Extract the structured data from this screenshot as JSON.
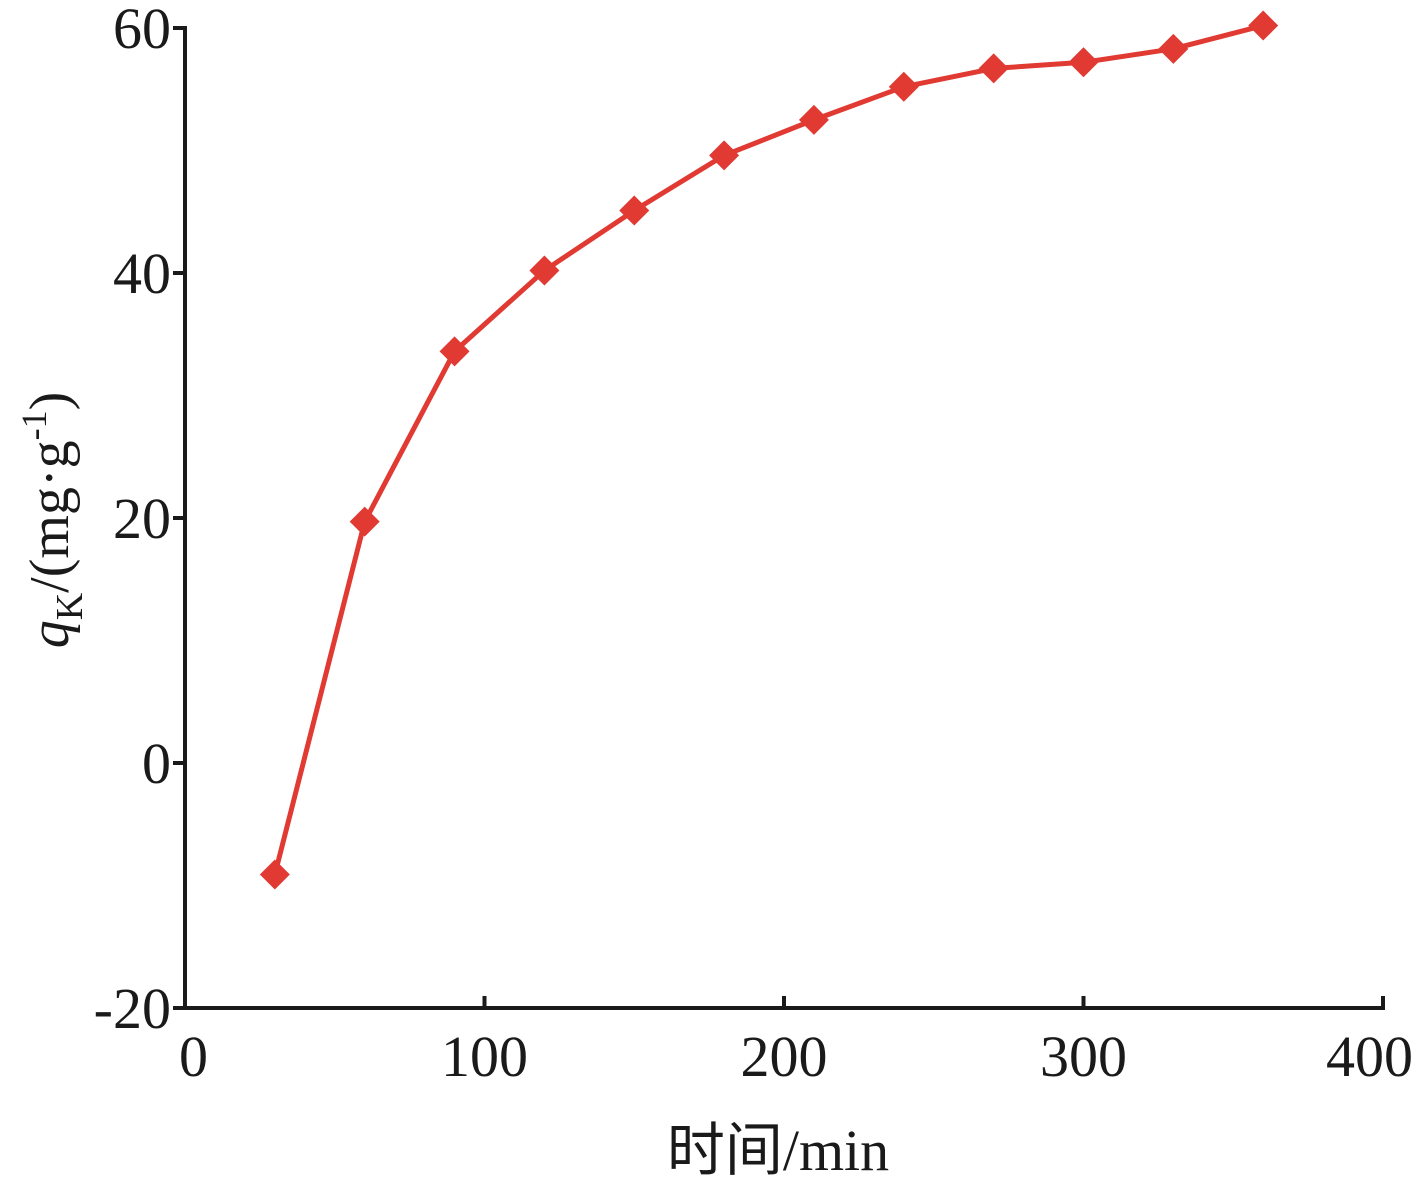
{
  "chart_data": {
    "type": "line",
    "title": "",
    "xlabel": "时间/min",
    "ylabel": {
      "symbol": "q",
      "subscript": "K",
      "unit_prefix": "/(mg·g",
      "unit_exponent": "-1",
      "unit_suffix": ")"
    },
    "xlim": [
      0,
      400
    ],
    "ylim": [
      -20,
      60
    ],
    "x_ticks": [
      0,
      100,
      200,
      300,
      400
    ],
    "y_ticks": [
      -20,
      0,
      20,
      40,
      60
    ],
    "x_tick_labels": [
      "0",
      "100",
      "200",
      "300",
      "400"
    ],
    "y_tick_labels": [
      "-20",
      "0",
      "20",
      "40",
      "60"
    ],
    "grid": false,
    "legend": "none",
    "series": [
      {
        "color": "#e03a33",
        "marker": "diamond",
        "x": [
          30,
          60,
          90,
          120,
          150,
          180,
          210,
          240,
          270,
          300,
          330,
          360
        ],
        "y": [
          -9.1,
          19.7,
          33.6,
          40.2,
          45.1,
          49.6,
          52.5,
          55.2,
          56.7,
          57.2,
          58.3,
          60.2
        ]
      }
    ]
  }
}
